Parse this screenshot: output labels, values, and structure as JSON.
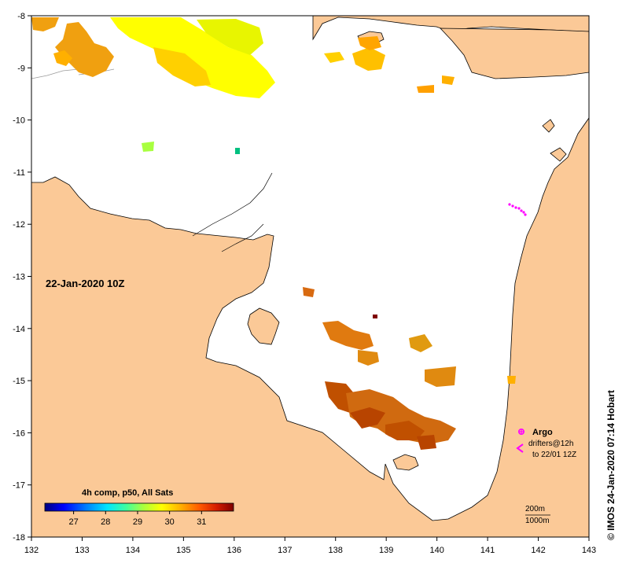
{
  "map": {
    "lon_range": [
      132,
      143
    ],
    "lat_range": [
      -18,
      -8
    ],
    "x_ticks": [
      "132",
      "133",
      "134",
      "135",
      "136",
      "137",
      "138",
      "139",
      "140",
      "141",
      "142",
      "143"
    ],
    "y_ticks": [
      "-8",
      "-9",
      "-10",
      "-11",
      "-12",
      "-13",
      "-14",
      "-15",
      "-16",
      "-17",
      "-18"
    ],
    "date_label": "22-Jan-2020 10Z",
    "land_color": "#fbc997",
    "frame_color": "#000000"
  },
  "colorbar": {
    "title": "4h comp, p50, All Sats",
    "tick_labels": [
      "27",
      "28",
      "29",
      "30",
      "31"
    ],
    "range": [
      26.1,
      32.0
    ],
    "colors": [
      "#00007f",
      "#0000ff",
      "#0080ff",
      "#00e5ff",
      "#3fff9f",
      "#a8ff3f",
      "#ffff00",
      "#ffb000",
      "#ff5a00",
      "#d51c00",
      "#7f0000"
    ]
  },
  "legend": {
    "argo_label": "Argo",
    "drifters_label": "drifters@12h",
    "drifters_sub": "to 22/01 12Z",
    "argo_color": "#ff00ff"
  },
  "depth_contours": {
    "label_200": "200m",
    "label_1000": "1000m"
  },
  "credit": "© IMOS 24-Jan-2020 07:14 Hobart"
}
